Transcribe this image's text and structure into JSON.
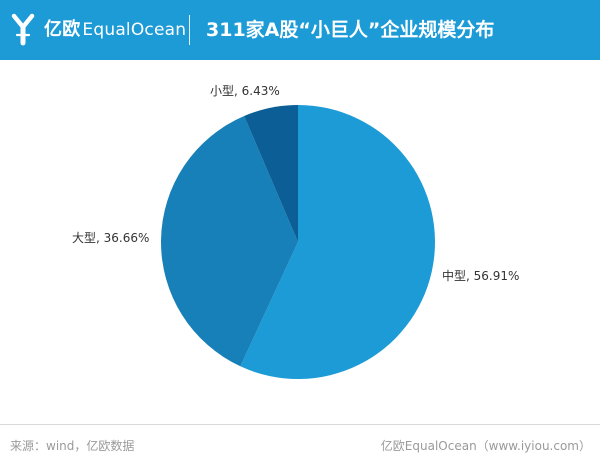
{
  "header": {
    "logo_cn": "亿欧",
    "logo_en": "EqualOcean",
    "title": "311家A股“小巨人”企业规模分布"
  },
  "chart_data": {
    "type": "pie",
    "series": [
      {
        "name": "中型",
        "value": 56.91,
        "label": "中型, 56.91%",
        "color": "#1c9bd6"
      },
      {
        "name": "大型",
        "value": 36.66,
        "label": "大型, 36.66%",
        "color": "#1780b8"
      },
      {
        "name": "小型",
        "value": 6.43,
        "label": "小型, 6.43%",
        "color": "#0b5f96"
      }
    ]
  },
  "footer": {
    "source": "来源：wind，亿欧数据",
    "brand": "亿欧EqualOcean（www.iyiou.com）"
  },
  "colors": {
    "header_bg": "#1c9bd6",
    "label_text": "#333333",
    "footer_text": "#9a9a9a"
  },
  "icons": {
    "logo": "equalocean-logo-icon"
  }
}
